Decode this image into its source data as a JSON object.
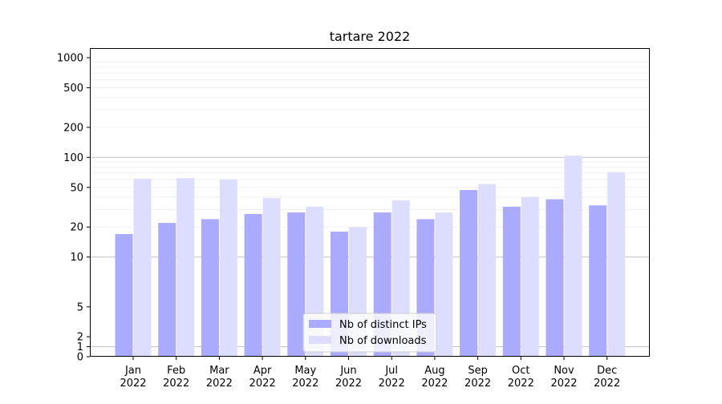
{
  "chart_data": {
    "type": "bar",
    "title": "tartare 2022",
    "xlabel": "",
    "ylabel": "",
    "yscale": "symlog",
    "ylim": [
      0,
      1000
    ],
    "y_ticks": [
      {
        "value": 0,
        "label": "0"
      },
      {
        "value": 1,
        "label": "1"
      },
      {
        "value": 2,
        "label": "2"
      },
      {
        "value": 5,
        "label": "5"
      },
      {
        "value": 10,
        "label": "10"
      },
      {
        "value": 20,
        "label": "20"
      },
      {
        "value": 50,
        "label": "50"
      },
      {
        "value": 100,
        "label": "100"
      },
      {
        "value": 200,
        "label": "200"
      },
      {
        "value": 500,
        "label": "500"
      },
      {
        "value": 1000,
        "label": "1000"
      }
    ],
    "categories": [
      {
        "month": "Jan",
        "year": "2022"
      },
      {
        "month": "Feb",
        "year": "2022"
      },
      {
        "month": "Mar",
        "year": "2022"
      },
      {
        "month": "Apr",
        "year": "2022"
      },
      {
        "month": "May",
        "year": "2022"
      },
      {
        "month": "Jun",
        "year": "2022"
      },
      {
        "month": "Jul",
        "year": "2022"
      },
      {
        "month": "Aug",
        "year": "2022"
      },
      {
        "month": "Sep",
        "year": "2022"
      },
      {
        "month": "Oct",
        "year": "2022"
      },
      {
        "month": "Nov",
        "year": "2022"
      },
      {
        "month": "Dec",
        "year": "2022"
      }
    ],
    "series": [
      {
        "name": "Nb of distinct IPs",
        "color": "#aaaaff",
        "values": [
          17,
          22,
          24,
          27,
          28,
          18,
          28,
          24,
          47,
          32,
          38,
          33
        ]
      },
      {
        "name": "Nb of downloads",
        "color": "#ddddff",
        "values": [
          61,
          62,
          60,
          39,
          32,
          20,
          37,
          28,
          54,
          40,
          104,
          71
        ]
      }
    ],
    "legend_position": "lower-center",
    "grid": true
  }
}
